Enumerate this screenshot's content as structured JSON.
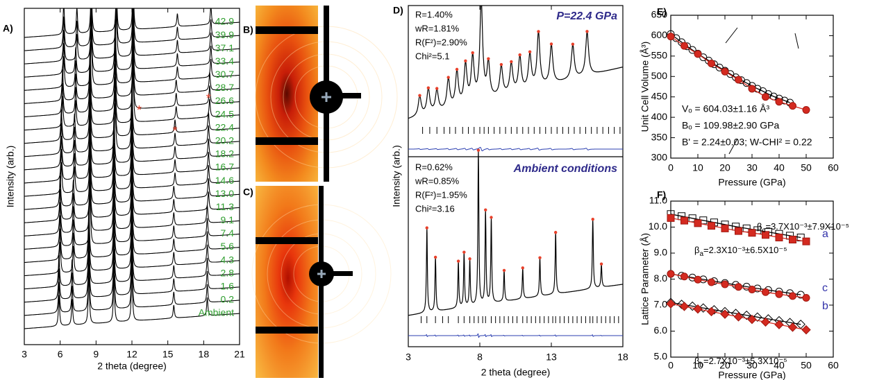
{
  "chart_data": [
    {
      "type": "waterfall",
      "label": "A)",
      "xlabel": "2 theta (degree)",
      "ylabel": "Intensity (arb.)",
      "xlim": [
        3,
        21
      ],
      "xticks": [
        3,
        6,
        9,
        12,
        15,
        18,
        21
      ],
      "name_color": "#2f9e2f",
      "line_color": "#000000",
      "relative_intensities": [
        0.6,
        0.5,
        1.0,
        0.9,
        1.0,
        0.25,
        0.35
      ],
      "asterisks": {
        "text": "*",
        "color": "#e8402a",
        "x": [
          12.6,
          15.6,
          18.4
        ]
      },
      "series": [
        {
          "name": "42.9",
          "peaks": [
            6.3,
            7.4,
            8.6,
            10.7,
            12.1,
            15.8,
            18.6
          ]
        },
        {
          "name": "39.9",
          "peaks": [
            6.3,
            7.4,
            8.6,
            10.7,
            12.1,
            15.8,
            18.6
          ]
        },
        {
          "name": "37.1",
          "peaks": [
            6.3,
            7.4,
            8.6,
            10.7,
            12.1,
            15.8,
            18.6
          ]
        },
        {
          "name": "33.4",
          "peaks": [
            6.3,
            7.3,
            8.6,
            10.6,
            12.1,
            15.8,
            18.6
          ]
        },
        {
          "name": "30.7",
          "peaks": [
            6.3,
            7.3,
            8.6,
            10.6,
            12.1,
            15.8,
            18.6
          ]
        },
        {
          "name": "28.7",
          "peaks": [
            6.2,
            7.3,
            8.5,
            10.6,
            12.1,
            15.7,
            18.5
          ]
        },
        {
          "name": "26.6",
          "peaks": [
            6.2,
            7.3,
            8.5,
            10.6,
            12.1,
            15.7,
            18.5
          ]
        },
        {
          "name": "24.5",
          "peaks": [
            6.2,
            7.3,
            8.5,
            10.6,
            12.1,
            15.7,
            18.5
          ]
        },
        {
          "name": "22.4",
          "peaks": [
            6.1,
            7.2,
            8.5,
            10.6,
            12.0,
            15.6,
            18.4
          ]
        },
        {
          "name": "20.2",
          "peaks": [
            6.1,
            7.2,
            8.5,
            10.6,
            12.0,
            15.6,
            18.4
          ]
        },
        {
          "name": "18.2",
          "peaks": [
            6.1,
            7.2,
            8.5,
            10.5,
            12.0,
            15.6,
            18.4
          ]
        },
        {
          "name": "16.7",
          "peaks": [
            6.1,
            7.2,
            8.5,
            10.5,
            12.0,
            15.6,
            18.4
          ]
        },
        {
          "name": "14.6",
          "peaks": [
            6.1,
            7.2,
            8.5,
            10.5,
            12.0,
            15.6,
            18.4
          ]
        },
        {
          "name": "13.0",
          "peaks": [
            6.0,
            7.1,
            8.5,
            10.5,
            12.0,
            15.5,
            18.4
          ]
        },
        {
          "name": "11.3",
          "peaks": [
            6.0,
            7.1,
            8.5,
            10.5,
            12.0,
            15.5,
            18.4
          ]
        },
        {
          "name": "9.1",
          "peaks": [
            6.0,
            7.1,
            8.5,
            10.5,
            12.0,
            15.5,
            18.3
          ]
        },
        {
          "name": "7.4",
          "peaks": [
            6.0,
            7.1,
            8.5,
            10.5,
            12.0,
            15.5,
            18.3
          ]
        },
        {
          "name": "5.6",
          "peaks": [
            6.0,
            7.1,
            8.4,
            10.5,
            12.0,
            15.5,
            18.3
          ]
        },
        {
          "name": "4.3",
          "peaks": [
            6.0,
            7.1,
            8.4,
            10.5,
            12.0,
            15.5,
            18.3
          ]
        },
        {
          "name": "2.8",
          "peaks": [
            5.9,
            7.0,
            8.4,
            10.5,
            12.0,
            15.5,
            18.3
          ]
        },
        {
          "name": "1.6",
          "peaks": [
            5.9,
            7.0,
            8.4,
            10.5,
            12.0,
            15.5,
            18.3
          ]
        },
        {
          "name": "0.2",
          "peaks": [
            5.9,
            7.0,
            8.4,
            10.5,
            12.0,
            15.5,
            18.3
          ]
        },
        {
          "name": "Ambient",
          "peaks": [
            5.9,
            7.0,
            8.4,
            10.5,
            12.0,
            15.5,
            18.3
          ]
        }
      ]
    },
    {
      "type": "image",
      "label": "B)"
    },
    {
      "type": "image",
      "label": "C)"
    },
    {
      "type": "rietveld",
      "label": "D)",
      "xlabel": "2 theta (degree)",
      "ylabel": "Intensity (arb.)",
      "xlim": [
        3,
        18
      ],
      "xticks": [
        3,
        8,
        13,
        18
      ],
      "colors": {
        "observed": "#e8402a",
        "calculated": "#000000",
        "difference": "#2b3fb0",
        "title": "#2e2a8a"
      },
      "panels": [
        {
          "title": "P=22.4 GPa",
          "stats": [
            "R=1.40%",
            "wR=1.81%",
            "R(F²)=2.90%",
            "Chi²=5.1"
          ],
          "peaks": [
            3.8,
            4.4,
            5.0,
            5.8,
            6.4,
            7.0,
            7.5,
            8.1,
            8.6,
            9.5,
            10.2,
            10.8,
            11.5,
            12.1,
            13.0,
            14.5,
            15.5
          ],
          "heights": [
            0.2,
            0.25,
            0.22,
            0.3,
            0.35,
            0.4,
            0.45,
            1.0,
            0.35,
            0.3,
            0.3,
            0.35,
            0.35,
            0.55,
            0.4,
            0.35,
            0.45
          ],
          "reflections": [
            4.0,
            4.5,
            5.0,
            5.5,
            5.9,
            6.3,
            6.8,
            7.2,
            7.6,
            8.0,
            8.3,
            8.6,
            9.0,
            9.4,
            9.8,
            10.2,
            10.6,
            11.0,
            11.4,
            11.8,
            12.2,
            12.6,
            13.0,
            13.4,
            13.8,
            14.2,
            14.6,
            15.0,
            15.4,
            15.8,
            16.2,
            16.6,
            17.0,
            17.4,
            17.8
          ]
        },
        {
          "title": "Ambient conditions",
          "stats": [
            "R=0.62%",
            "wR=0.85%",
            "R(F²)=1.95%",
            "Chi²=3.16"
          ],
          "peaks": [
            4.3,
            4.9,
            6.5,
            6.9,
            7.3,
            7.9,
            8.4,
            8.8,
            9.7,
            11.0,
            12.2,
            13.3,
            15.9,
            16.5
          ],
          "heights": [
            0.55,
            0.35,
            0.3,
            0.35,
            0.3,
            1.0,
            0.6,
            0.55,
            0.2,
            0.2,
            0.25,
            0.4,
            0.45,
            0.15
          ],
          "reflections": [
            3.9,
            4.3,
            4.9,
            5.4,
            5.8,
            6.5,
            6.9,
            7.3,
            7.6,
            7.9,
            8.2,
            8.4,
            8.8,
            9.1,
            9.4,
            9.7,
            10.0,
            10.3,
            10.6,
            11.0,
            11.3,
            11.6,
            11.9,
            12.2,
            12.5,
            12.8,
            13.1,
            13.3,
            13.6,
            13.9,
            14.2,
            14.5,
            14.8,
            15.1,
            15.4,
            15.7,
            15.9,
            16.2,
            16.5,
            16.8,
            17.1,
            17.4,
            17.7
          ]
        }
      ]
    },
    {
      "type": "scatter",
      "label": "E)",
      "xlabel": "Pressure (GPa)",
      "ylabel": "Unit Cell Volume (Å³)",
      "xlim": [
        0,
        60
      ],
      "xticks": [
        0,
        10,
        20,
        30,
        40,
        50,
        60
      ],
      "ylim": [
        300,
        650
      ],
      "yticks": [
        300,
        350,
        400,
        450,
        500,
        550,
        600,
        650
      ],
      "annotations": [
        "Vₒ = 604.03±1.16 Å³",
        "Bₒ = 109.98±2.90 GPa",
        "B' = 2.24±0.03; W-CHI² = 0.22"
      ],
      "series": [
        {
          "color": "#000000",
          "marker": "circle",
          "filled": false,
          "x": [
            0,
            2,
            4,
            6,
            8,
            10,
            12,
            14,
            16,
            18,
            20,
            22,
            24,
            26,
            28,
            30,
            32,
            34,
            36,
            38,
            40,
            42,
            44
          ],
          "values": [
            604,
            594,
            584,
            574,
            565,
            556,
            547,
            539,
            530,
            522,
            514,
            506,
            498,
            491,
            484,
            477,
            470,
            464,
            457,
            451,
            446,
            441,
            436
          ]
        },
        {
          "color": "#d42a20",
          "marker": "circle",
          "filled": true,
          "x": [
            0,
            5,
            10,
            15,
            20,
            25,
            30,
            35,
            40,
            45,
            50
          ],
          "values": [
            598,
            575,
            555,
            532,
            512,
            492,
            470,
            450,
            438,
            428,
            418
          ]
        }
      ]
    },
    {
      "type": "scatter",
      "label": "F)",
      "xlabel": "Pressure (GPa)",
      "ylabel": "Lattice Parameter (Å)",
      "xlim": [
        0,
        60
      ],
      "xticks": [
        0,
        10,
        20,
        30,
        40,
        50,
        60
      ],
      "ylim": [
        5,
        11
      ],
      "yticks": [
        {
          "value": 5,
          "label": "5.0"
        },
        {
          "value": 6,
          "label": "6.0"
        },
        {
          "value": 7,
          "label": "7.0"
        },
        {
          "value": 8,
          "label": "8.0"
        },
        {
          "value": 9,
          "label": "9.0"
        },
        {
          "value": 10,
          "label": "10.0"
        },
        {
          "value": 11,
          "label": "11.0"
        }
      ],
      "curve_labels": [
        "a",
        "c",
        "b"
      ],
      "curve_label_color": "#3333aa",
      "betas": [
        {
          "symbol": "β",
          "sub": "a",
          "text": "=2.3X10⁻³±6.5X10⁻⁵"
        },
        {
          "symbol": "β",
          "sub": "c",
          "text": "=3.7X10⁻³±7.9X10⁻⁵"
        },
        {
          "symbol": "β",
          "sub": "b",
          "text": "=2.7X10⁻³±5.3X10⁻⁵"
        }
      ],
      "series": [
        {
          "color": "#000000",
          "marker": "square",
          "filled": false,
          "x": [
            0,
            4,
            8,
            12,
            16,
            20,
            24,
            28,
            32,
            36,
            40,
            44,
            48
          ],
          "values": [
            10.5,
            10.42,
            10.34,
            10.26,
            10.18,
            10.1,
            10.02,
            9.95,
            9.88,
            9.81,
            9.74,
            9.67,
            9.6
          ]
        },
        {
          "color": "#d42a20",
          "marker": "square",
          "filled": true,
          "x": [
            0,
            5,
            10,
            15,
            20,
            25,
            30,
            35,
            40,
            45,
            50
          ],
          "values": [
            10.35,
            10.25,
            10.15,
            10.05,
            9.95,
            9.85,
            9.78,
            9.7,
            9.6,
            9.52,
            9.45
          ]
        },
        {
          "color": "#000000",
          "marker": "circle",
          "filled": false,
          "x": [
            0,
            4,
            8,
            12,
            16,
            20,
            24,
            28,
            32,
            36,
            40,
            44,
            48
          ],
          "values": [
            8.2,
            8.13,
            8.06,
            7.99,
            7.92,
            7.85,
            7.78,
            7.71,
            7.64,
            7.58,
            7.52,
            7.46,
            7.4
          ]
        },
        {
          "color": "#d42a20",
          "marker": "circle",
          "filled": true,
          "x": [
            0,
            5,
            10,
            15,
            20,
            25,
            30,
            35,
            40,
            45,
            50
          ],
          "values": [
            8.2,
            8.1,
            7.98,
            7.88,
            7.8,
            7.7,
            7.6,
            7.5,
            7.42,
            7.35,
            7.28
          ]
        },
        {
          "color": "#000000",
          "marker": "diamond",
          "filled": false,
          "x": [
            0,
            4,
            8,
            12,
            16,
            20,
            24,
            28,
            32,
            36,
            40,
            44,
            48
          ],
          "values": [
            7.1,
            7.03,
            6.96,
            6.89,
            6.82,
            6.75,
            6.68,
            6.61,
            6.54,
            6.47,
            6.4,
            6.33,
            6.26
          ]
        },
        {
          "color": "#d42a20",
          "marker": "diamond",
          "filled": true,
          "x": [
            0,
            5,
            10,
            15,
            20,
            25,
            30,
            35,
            40,
            45,
            50
          ],
          "values": [
            7.05,
            6.95,
            6.85,
            6.75,
            6.65,
            6.55,
            6.45,
            6.35,
            6.25,
            6.15,
            6.05
          ]
        }
      ]
    }
  ]
}
